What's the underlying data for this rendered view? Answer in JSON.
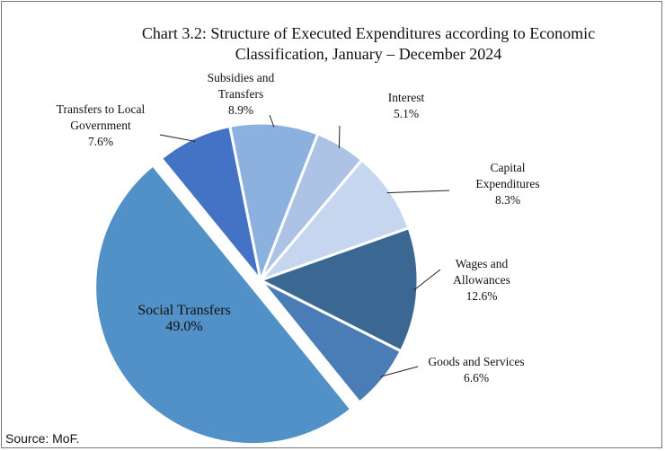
{
  "chart_data": {
    "type": "pie",
    "title": "Chart 3.2: Structure of Executed Expenditures according to Economic Classification, January – December 2024",
    "categories": [
      "Social Transfers",
      "Transfers to Local Government",
      "Subsidies and Transfers",
      "Interest",
      "Capital Expenditures",
      "Wages and Allowances",
      "Goods and Services"
    ],
    "values": [
      49.0,
      7.6,
      8.9,
      5.1,
      8.3,
      12.6,
      6.6
    ],
    "value_labels": [
      "49.0%",
      "7.6%",
      "8.9%",
      "5.1%",
      "8.3%",
      "12.6%",
      "6.6%"
    ],
    "colors": [
      "#5290c8",
      "#4472c4",
      "#8db1df",
      "#adc3e6",
      "#c5d6ee",
      "#3b6793",
      "#4a7db5"
    ]
  },
  "source": "Source: MoF."
}
